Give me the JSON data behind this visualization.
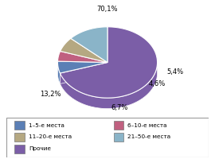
{
  "slices": [
    70.1,
    5.4,
    4.6,
    6.7,
    13.2
  ],
  "labels": [
    "70,1%",
    "5,4%",
    "4,6%",
    "6,7%",
    "13,2%"
  ],
  "colors": [
    "#7b5ea7",
    "#5b7fb5",
    "#c06080",
    "#b5a882",
    "#8ab4c8"
  ],
  "legend_labels_col1": [
    "1–5-е места",
    "11–20-е места",
    "Прочие"
  ],
  "legend_labels_col2": [
    "6–10-е места",
    "21–50-е места"
  ],
  "legend_colors_col1": [
    "#5b7fb5",
    "#b5a882",
    "#7b5ea7"
  ],
  "legend_colors_col2": [
    "#c06080",
    "#8ab4c8"
  ],
  "startangle": 90,
  "background_color": "#ffffff"
}
